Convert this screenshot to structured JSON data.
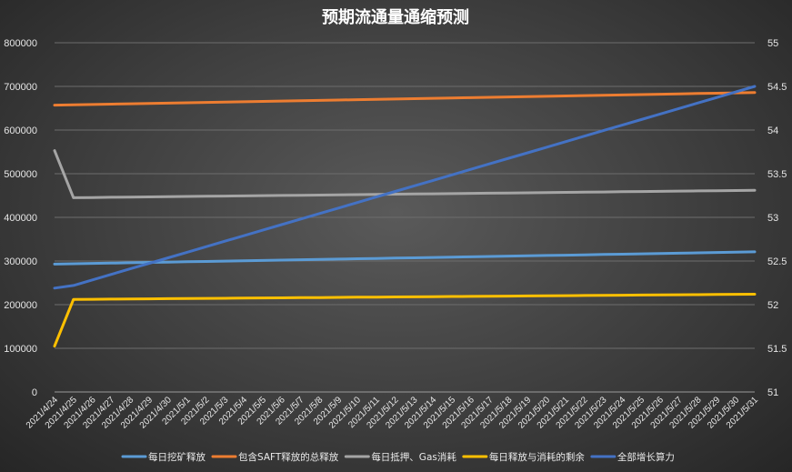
{
  "chart_data": {
    "type": "line",
    "title": "预期流通量通缩预测",
    "categories": [
      "2021/4/24",
      "2021/4/25",
      "2021/4/26",
      "2021/4/27",
      "2021/4/28",
      "2021/4/29",
      "2021/4/30",
      "2021/5/1",
      "2021/5/2",
      "2021/5/3",
      "2021/5/4",
      "2021/5/5",
      "2021/5/6",
      "2021/5/7",
      "2021/5/8",
      "2021/5/9",
      "2021/5/10",
      "2021/5/11",
      "2021/5/12",
      "2021/5/13",
      "2021/5/14",
      "2021/5/15",
      "2021/5/16",
      "2021/5/17",
      "2021/5/18",
      "2021/5/19",
      "2021/5/20",
      "2021/5/21",
      "2021/5/22",
      "2021/5/23",
      "2021/5/24",
      "2021/5/25",
      "2021/5/26",
      "2021/5/27",
      "2021/5/28",
      "2021/5/29",
      "2021/5/30",
      "2021/5/31"
    ],
    "y_left": {
      "min": 0,
      "max": 800000,
      "ticks": [
        0,
        100000,
        200000,
        300000,
        400000,
        500000,
        600000,
        700000,
        800000
      ]
    },
    "y_right": {
      "min": 51,
      "max": 55,
      "ticks": [
        51,
        51.5,
        52,
        52.5,
        53,
        53.5,
        54,
        54.5,
        55
      ]
    },
    "grid": true,
    "legend_position": "bottom",
    "series": [
      {
        "name": "每日挖矿释放",
        "color": "#5b9bd5",
        "axis": "left",
        "start": 293000,
        "end": 321000
      },
      {
        "name": "包含SAFT释放的总释放",
        "color": "#ed7d31",
        "axis": "left",
        "start": 657000,
        "end": 686000
      },
      {
        "name": "每日抵押、Gas消耗",
        "color": "#a5a5a5",
        "axis": "left",
        "first": 553000,
        "start": 445000,
        "end": 462000
      },
      {
        "name": "每日释放与消耗的剩余",
        "color": "#ffc000",
        "axis": "left",
        "first": 105000,
        "start": 212000,
        "end": 224000
      },
      {
        "name": "全部增长算力",
        "color": "#4472c4",
        "axis": "right",
        "first": 52.19,
        "start": 52.22,
        "end": 54.5
      }
    ]
  }
}
